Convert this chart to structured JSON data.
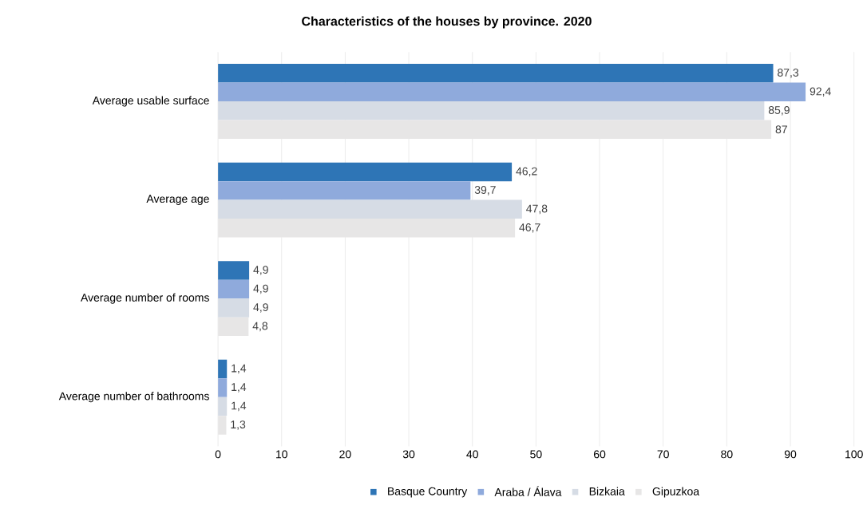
{
  "chart_data": {
    "type": "bar",
    "orientation": "horizontal",
    "title": "Characteristics of the houses by province. 2020",
    "categories": [
      "Average usable surface",
      "Average age",
      "Average number of rooms",
      "Average number of bathrooms"
    ],
    "series": [
      {
        "name": "Basque Country",
        "color": "#2e75b6",
        "values": [
          87.3,
          46.2,
          4.9,
          1.4
        ],
        "value_labels": [
          "87,3",
          "46,2",
          "4,9",
          "1,4"
        ]
      },
      {
        "name": "Araba / Álava",
        "color": "#8faadc",
        "values": [
          92.4,
          39.7,
          4.9,
          1.4
        ],
        "value_labels": [
          "92,4",
          "39,7",
          "4,9",
          "1,4"
        ]
      },
      {
        "name": "Bizkaia",
        "color": "#d6dce5",
        "values": [
          85.9,
          47.8,
          4.9,
          1.4
        ],
        "value_labels": [
          "85,9",
          "47,8",
          "4,9",
          "1,4"
        ]
      },
      {
        "name": "Gipuzkoa",
        "color": "#e7e6e6",
        "values": [
          87,
          46.7,
          4.8,
          1.3
        ],
        "value_labels": [
          "87",
          "46,7",
          "4,8",
          "1,3"
        ]
      }
    ],
    "xlim": [
      0,
      100
    ],
    "xticks": [
      0,
      10,
      20,
      30,
      40,
      50,
      60,
      70,
      80,
      90,
      100
    ],
    "grid": "x",
    "legend": "bottom"
  }
}
